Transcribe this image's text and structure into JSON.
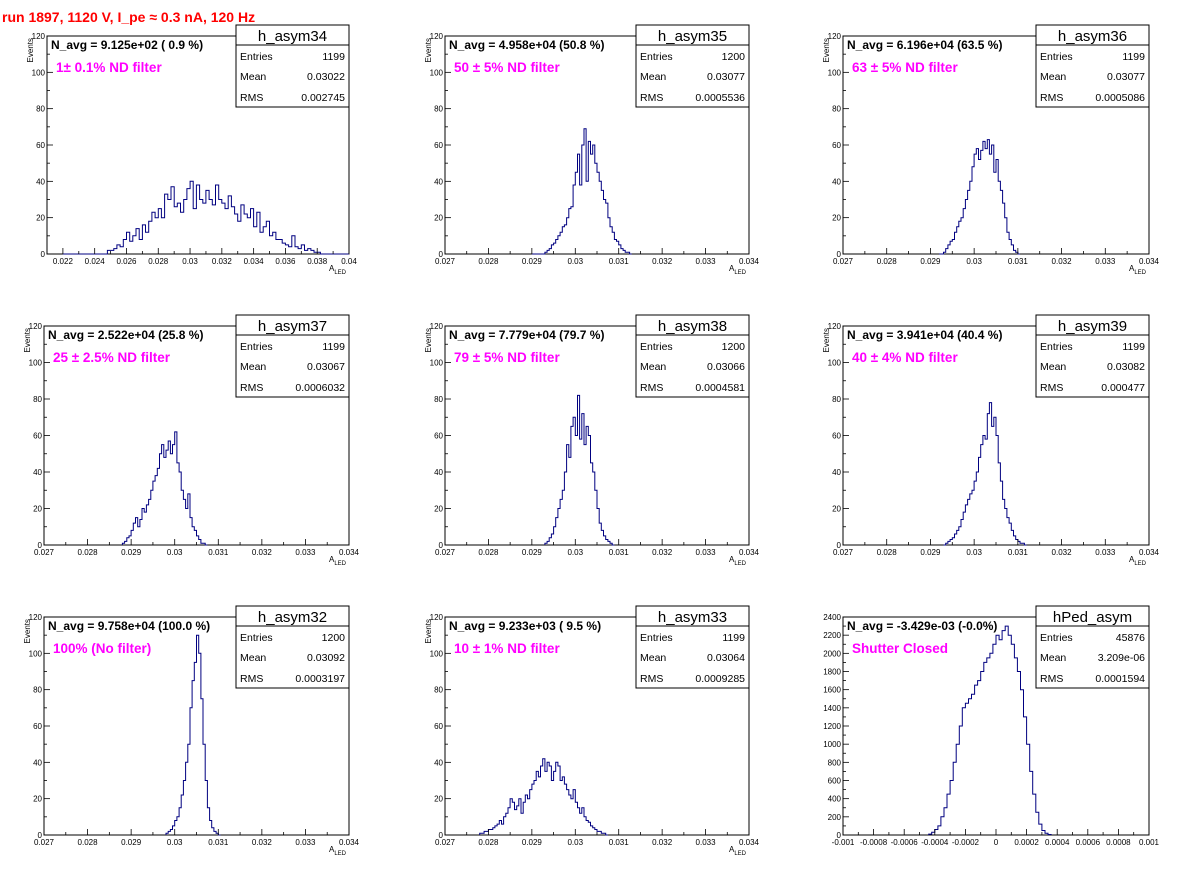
{
  "run_title": "run 1897,  1120 V, I_pe ≈ 0.3 nA, 120 Hz",
  "colors": {
    "title": "#ff0000",
    "histogram_line": "#000080",
    "filter_label": "#ff00ff",
    "frame": "#000000"
  },
  "chart_data": [
    {
      "type": "histogram",
      "name": "h_asym34",
      "n_avg": "N_avg = 9.125e+02 ( 0.9 %)",
      "filter_label": "1± 0.1% ND filter",
      "stats": {
        "entries": "1199",
        "mean": "0.03022",
        "rms": "0.002745"
      },
      "stat_labels": {
        "entries": "Entries",
        "mean": "Mean",
        "rms": "RMS"
      },
      "ylabel": "Events",
      "xlabel": "A",
      "xlabel_sub": "LED",
      "xlim": [
        0.021,
        0.04
      ],
      "ylim": [
        0,
        120
      ],
      "xticks": [
        0.022,
        0.024,
        0.026,
        0.028,
        0.03,
        0.032,
        0.034,
        0.036,
        0.038,
        0.04
      ],
      "xtick_labels": [
        "0.022",
        "0.024",
        "0.026",
        "0.028",
        "0.03",
        "0.032",
        "0.034",
        "0.036",
        "0.038",
        "0.04"
      ],
      "yticks": [
        0,
        20,
        40,
        60,
        80,
        100,
        120
      ],
      "ytick_labels": [
        "0",
        "20",
        "40",
        "60",
        "80",
        "100",
        "120"
      ],
      "bin_start": 0.022,
      "bin_width": 0.0002,
      "counts": [
        0,
        0,
        0,
        0,
        0,
        0,
        0,
        0,
        0,
        0,
        0,
        0,
        0,
        0,
        2,
        2,
        3,
        5,
        4,
        8,
        12,
        7,
        10,
        14,
        8,
        16,
        12,
        18,
        23,
        20,
        25,
        20,
        33,
        30,
        37,
        26,
        28,
        23,
        30,
        36,
        40,
        25,
        38,
        30,
        28,
        35,
        30,
        27,
        38,
        30,
        28,
        25,
        32,
        26,
        22,
        18,
        27,
        22,
        20,
        25,
        15,
        23,
        12,
        15,
        18,
        10,
        12,
        8,
        8,
        6,
        5,
        4,
        10,
        4,
        3,
        5,
        2,
        3,
        2,
        1,
        1,
        0,
        0,
        0,
        0,
        0,
        0,
        0,
        0,
        0
      ]
    },
    {
      "type": "histogram",
      "name": "h_asym35",
      "n_avg": "N_avg = 4.958e+04 (50.8 %)",
      "filter_label": "50 ± 5% ND filter",
      "stats": {
        "entries": "1200",
        "mean": "0.03077",
        "rms": "0.0005536"
      },
      "stat_labels": {
        "entries": "Entries",
        "mean": "Mean",
        "rms": "RMS"
      },
      "ylabel": "Events",
      "xlabel": "A",
      "xlabel_sub": "LED",
      "xlim": [
        0.027,
        0.034
      ],
      "ylim": [
        0,
        120
      ],
      "xticks": [
        0.027,
        0.028,
        0.029,
        0.03,
        0.031,
        0.032,
        0.033,
        0.034
      ],
      "xtick_labels": [
        "0.027",
        "0.028",
        "0.029",
        "0.03",
        "0.031",
        "0.032",
        "0.033",
        "0.034"
      ],
      "yticks": [
        0,
        20,
        40,
        60,
        80,
        100,
        120
      ],
      "ytick_labels": [
        "0",
        "20",
        "40",
        "60",
        "80",
        "100",
        "120"
      ],
      "bin_start": 0.029,
      "bin_width": 5e-05,
      "counts": [
        0,
        0,
        0,
        0,
        0,
        0,
        1,
        2,
        3,
        5,
        6,
        8,
        10,
        12,
        15,
        16,
        20,
        25,
        26,
        38,
        45,
        55,
        38,
        60,
        69,
        40,
        62,
        55,
        60,
        50,
        45,
        40,
        35,
        30,
        28,
        20,
        15,
        12,
        8,
        7,
        5,
        3,
        2,
        1,
        1,
        0
      ]
    },
    {
      "type": "histogram",
      "name": "h_asym36",
      "n_avg": "N_avg = 6.196e+04 (63.5 %)",
      "filter_label": "63 ± 5% ND filter",
      "stats": {
        "entries": "1199",
        "mean": "0.03077",
        "rms": "0.0005086"
      },
      "stat_labels": {
        "entries": "Entries",
        "mean": "Mean",
        "rms": "RMS"
      },
      "ylabel": "Events",
      "xlabel": "A",
      "xlabel_sub": "LED",
      "xlim": [
        0.027,
        0.034
      ],
      "ylim": [
        0,
        120
      ],
      "xticks": [
        0.027,
        0.028,
        0.029,
        0.03,
        0.031,
        0.032,
        0.033,
        0.034
      ],
      "xtick_labels": [
        "0.027",
        "0.028",
        "0.029",
        "0.03",
        "0.031",
        "0.032",
        "0.033",
        "0.034"
      ],
      "yticks": [
        0,
        20,
        40,
        60,
        80,
        100,
        120
      ],
      "ytick_labels": [
        "0",
        "20",
        "40",
        "60",
        "80",
        "100",
        "120"
      ],
      "bin_start": 0.0292,
      "bin_width": 5e-05,
      "counts": [
        0,
        0,
        1,
        3,
        5,
        7,
        8,
        12,
        15,
        18,
        20,
        25,
        30,
        35,
        40,
        48,
        55,
        58,
        52,
        57,
        62,
        58,
        63,
        55,
        60,
        45,
        52,
        40,
        35,
        28,
        20,
        12,
        8,
        5,
        2,
        1,
        0
      ]
    },
    {
      "type": "histogram",
      "name": "h_asym37",
      "n_avg": "N_avg = 2.522e+04 (25.8 %)",
      "filter_label": "25 ± 2.5% ND filter",
      "stats": {
        "entries": "1199",
        "mean": "0.03067",
        "rms": "0.0006032"
      },
      "stat_labels": {
        "entries": "Entries",
        "mean": "Mean",
        "rms": "RMS"
      },
      "ylabel": "Events",
      "xlabel": "A",
      "xlabel_sub": "LED",
      "xlim": [
        0.027,
        0.034
      ],
      "ylim": [
        0,
        120
      ],
      "xticks": [
        0.027,
        0.028,
        0.029,
        0.03,
        0.031,
        0.032,
        0.033,
        0.034
      ],
      "xtick_labels": [
        "0.027",
        "0.028",
        "0.029",
        "0.03",
        "0.031",
        "0.032",
        "0.033",
        "0.034"
      ],
      "yticks": [
        0,
        20,
        40,
        60,
        80,
        100,
        120
      ],
      "ytick_labels": [
        "0",
        "20",
        "40",
        "60",
        "80",
        "100",
        "120"
      ],
      "bin_start": 0.0288,
      "bin_width": 5e-05,
      "counts": [
        1,
        2,
        4,
        5,
        8,
        12,
        15,
        10,
        14,
        20,
        18,
        22,
        25,
        30,
        35,
        38,
        42,
        50,
        55,
        48,
        52,
        57,
        50,
        55,
        62,
        45,
        40,
        30,
        25,
        20,
        28,
        15,
        10,
        8,
        5,
        3,
        1,
        1,
        0
      ]
    },
    {
      "type": "histogram",
      "name": "h_asym38",
      "n_avg": "N_avg = 7.779e+04 (79.7 %)",
      "filter_label": "79 ± 5% ND filter",
      "stats": {
        "entries": "1200",
        "mean": "0.03066",
        "rms": "0.0004581"
      },
      "stat_labels": {
        "entries": "Entries",
        "mean": "Mean",
        "rms": "RMS"
      },
      "ylabel": "Events",
      "xlabel": "A",
      "xlabel_sub": "LED",
      "xlim": [
        0.027,
        0.034
      ],
      "ylim": [
        0,
        120
      ],
      "xticks": [
        0.027,
        0.028,
        0.029,
        0.03,
        0.031,
        0.032,
        0.033,
        0.034
      ],
      "xtick_labels": [
        "0.027",
        "0.028",
        "0.029",
        "0.03",
        "0.031",
        "0.032",
        "0.033",
        "0.034"
      ],
      "yticks": [
        0,
        20,
        40,
        60,
        80,
        100,
        120
      ],
      "ytick_labels": [
        "0",
        "20",
        "40",
        "60",
        "80",
        "100",
        "120"
      ],
      "bin_start": 0.0293,
      "bin_width": 5e-05,
      "counts": [
        1,
        2,
        4,
        6,
        10,
        15,
        20,
        25,
        30,
        40,
        55,
        48,
        65,
        70,
        60,
        82,
        58,
        72,
        55,
        65,
        60,
        45,
        40,
        30,
        20,
        12,
        8,
        5,
        3,
        2,
        1,
        0
      ]
    },
    {
      "type": "histogram",
      "name": "h_asym39",
      "n_avg": "N_avg = 3.941e+04 (40.4 %)",
      "filter_label": "40 ± 4% ND filter",
      "stats": {
        "entries": "1199",
        "mean": "0.03082",
        "rms": "0.000477"
      },
      "stat_labels": {
        "entries": "Entries",
        "mean": "Mean",
        "rms": "RMS"
      },
      "ylabel": "Events",
      "xlabel": "A",
      "xlabel_sub": "LED",
      "xlim": [
        0.027,
        0.034
      ],
      "ylim": [
        0,
        120
      ],
      "xticks": [
        0.027,
        0.028,
        0.029,
        0.03,
        0.031,
        0.032,
        0.033,
        0.034
      ],
      "xtick_labels": [
        "0.027",
        "0.028",
        "0.029",
        "0.03",
        "0.031",
        "0.032",
        "0.033",
        "0.034"
      ],
      "yticks": [
        0,
        20,
        40,
        60,
        80,
        100,
        120
      ],
      "ytick_labels": [
        "0",
        "20",
        "40",
        "60",
        "80",
        "100",
        "120"
      ],
      "bin_start": 0.0293,
      "bin_width": 5e-05,
      "counts": [
        0,
        1,
        2,
        3,
        4,
        6,
        8,
        10,
        14,
        18,
        22,
        25,
        28,
        30,
        35,
        40,
        48,
        55,
        60,
        58,
        72,
        78,
        65,
        70,
        60,
        45,
        35,
        25,
        20,
        15,
        12,
        8,
        5,
        3,
        2,
        1,
        1,
        0
      ]
    },
    {
      "type": "histogram",
      "name": "h_asym32",
      "n_avg": "N_avg = 9.758e+04 (100.0 %)",
      "filter_label": "100% (No filter)",
      "stats": {
        "entries": "1200",
        "mean": "0.03092",
        "rms": "0.0003197"
      },
      "stat_labels": {
        "entries": "Entries",
        "mean": "Mean",
        "rms": "RMS"
      },
      "ylabel": "Events",
      "xlabel": "A",
      "xlabel_sub": "LED",
      "xlim": [
        0.027,
        0.034
      ],
      "ylim": [
        0,
        120
      ],
      "xticks": [
        0.027,
        0.028,
        0.029,
        0.03,
        0.031,
        0.032,
        0.033,
        0.034
      ],
      "xtick_labels": [
        "0.027",
        "0.028",
        "0.029",
        "0.03",
        "0.031",
        "0.032",
        "0.033",
        "0.034"
      ],
      "yticks": [
        0,
        20,
        40,
        60,
        80,
        100,
        120
      ],
      "ytick_labels": [
        "0",
        "20",
        "40",
        "60",
        "80",
        "100",
        "120"
      ],
      "bin_start": 0.0298,
      "bin_width": 5e-05,
      "counts": [
        1,
        2,
        3,
        5,
        8,
        10,
        15,
        22,
        30,
        40,
        50,
        70,
        85,
        95,
        110,
        100,
        75,
        50,
        30,
        15,
        8,
        4,
        2,
        1,
        0
      ]
    },
    {
      "type": "histogram",
      "name": "h_asym33",
      "n_avg": "N_avg = 9.233e+03 ( 9.5 %)",
      "filter_label": "10 ± 1% ND filter",
      "stats": {
        "entries": "1199",
        "mean": "0.03064",
        "rms": "0.0009285"
      },
      "stat_labels": {
        "entries": "Entries",
        "mean": "Mean",
        "rms": "RMS"
      },
      "ylabel": "Events",
      "xlabel": "A",
      "xlabel_sub": "LED",
      "xlim": [
        0.027,
        0.034
      ],
      "ylim": [
        0,
        120
      ],
      "xticks": [
        0.027,
        0.028,
        0.029,
        0.03,
        0.031,
        0.032,
        0.033,
        0.034
      ],
      "xtick_labels": [
        "0.027",
        "0.028",
        "0.029",
        "0.03",
        "0.031",
        "0.032",
        "0.033",
        "0.034"
      ],
      "yticks": [
        0,
        20,
        40,
        60,
        80,
        100,
        120
      ],
      "ytick_labels": [
        "0",
        "20",
        "40",
        "60",
        "80",
        "100",
        "120"
      ],
      "bin_start": 0.0278,
      "bin_width": 5e-05,
      "counts": [
        1,
        1,
        2,
        2,
        3,
        3,
        4,
        5,
        6,
        8,
        6,
        10,
        12,
        15,
        20,
        18,
        14,
        16,
        20,
        12,
        18,
        22,
        20,
        25,
        28,
        30,
        35,
        32,
        38,
        42,
        35,
        40,
        38,
        30,
        35,
        40,
        38,
        30,
        32,
        28,
        25,
        22,
        20,
        25,
        18,
        15,
        12,
        15,
        10,
        8,
        7,
        5,
        4,
        3,
        2,
        2,
        1,
        1,
        0
      ]
    },
    {
      "type": "histogram",
      "name": "hPed_asym",
      "n_avg": "N_avg = -3.429e-03 (-0.0%)",
      "filter_label": "Shutter Closed",
      "stats": {
        "entries": "45876",
        "mean": "3.209e-06",
        "rms": "0.0001594"
      },
      "stat_labels": {
        "entries": "Entries",
        "mean": "Mean",
        "rms": "RMS"
      },
      "ylabel": "",
      "xlabel": "",
      "xlabel_sub": "",
      "xlim": [
        -0.001,
        0.001
      ],
      "ylim": [
        0,
        2400
      ],
      "xticks": [
        -0.001,
        -0.0008,
        -0.0006,
        -0.0004,
        -0.0002,
        0,
        0.0002,
        0.0004,
        0.0006,
        0.0008,
        0.001
      ],
      "xtick_labels": [
        "-0.001",
        "-0.0008",
        "-0.0006",
        "-0.0004",
        "-0.0002",
        "0",
        "0.0002",
        "0.0004",
        "0.0006",
        "0.0008",
        "0.001"
      ],
      "yticks": [
        0,
        200,
        400,
        600,
        800,
        1000,
        1200,
        1400,
        1600,
        1800,
        2000,
        2200,
        2400
      ],
      "ytick_labels": [
        "0",
        "200",
        "400",
        "600",
        "800",
        "1000",
        "1200",
        "1400",
        "1600",
        "1800",
        "2000",
        "2200",
        "2400"
      ],
      "bin_start": -0.00044,
      "bin_width": 2e-05,
      "counts": [
        10,
        30,
        60,
        100,
        200,
        300,
        450,
        600,
        800,
        1000,
        1200,
        1400,
        1450,
        1500,
        1550,
        1650,
        1700,
        1800,
        1900,
        1950,
        2000,
        2100,
        2200,
        2150,
        2250,
        2300,
        2200,
        2100,
        1950,
        1800,
        1600,
        1300,
        1000,
        700,
        450,
        250,
        120,
        50,
        20,
        5
      ]
    }
  ]
}
